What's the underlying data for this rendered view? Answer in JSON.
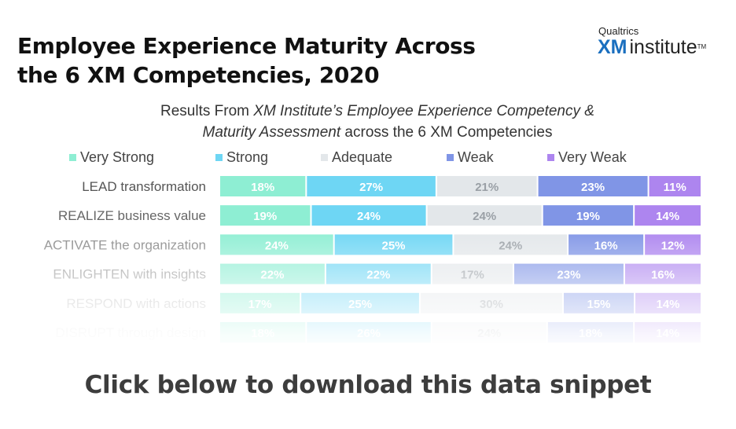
{
  "header": {
    "title_line1": "Employee Experience Maturity Across",
    "title_line2": "the 6 XM Competencies, 2020"
  },
  "brand": {
    "top": "Qualtrics",
    "xm": "XM",
    "institute": "institute",
    "tm": "TM"
  },
  "cta": "Click below to download this data snippet",
  "colors": {
    "very_strong": "#8eeed3",
    "strong": "#6ed6f4",
    "adequate": "#e3e7ea",
    "weak": "#8095e6",
    "very_weak": "#ad85ef"
  },
  "chart_data": {
    "type": "bar",
    "orientation": "horizontal",
    "stacked": true,
    "title": "",
    "subtitle_plain": "Results From ",
    "subtitle_italic_1": "XM Institute’s Employee Experience Competency &",
    "subtitle_italic_2": "Maturity Assessment",
    "subtitle_plain_2": " across the 6 XM Competencies",
    "legend_position": "top",
    "categories": [
      "LEAD transformation",
      "REALIZE business value",
      "ACTIVATE the organization",
      "ENLIGHTEN with insights",
      "RESPOND with actions",
      "DISRUPT through design"
    ],
    "series": [
      {
        "name": "Very Strong",
        "values": [
          18,
          19,
          24,
          22,
          17,
          18
        ]
      },
      {
        "name": "Strong",
        "values": [
          27,
          24,
          25,
          22,
          25,
          26
        ]
      },
      {
        "name": "Adequate",
        "values": [
          21,
          24,
          24,
          17,
          30,
          24
        ]
      },
      {
        "name": "Weak",
        "values": [
          23,
          19,
          16,
          23,
          15,
          18
        ]
      },
      {
        "name": "Very Weak",
        "values": [
          11,
          14,
          12,
          16,
          14,
          14
        ]
      }
    ],
    "value_suffix": "%"
  }
}
